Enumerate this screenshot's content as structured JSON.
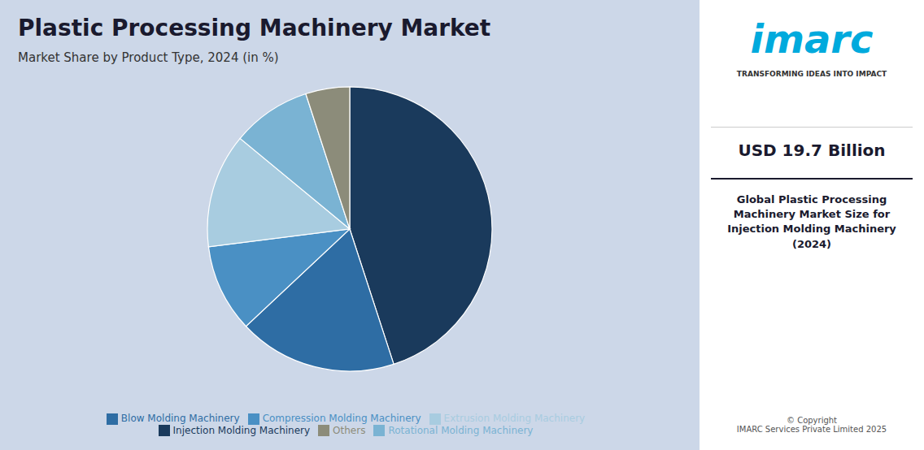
{
  "chart_data": {
    "type": "pie",
    "title": "Plastic Processing Machinery Market",
    "subtitle": "Market Share by Product Type, 2024 (in %)",
    "categories": [
      "Injection Molding Machinery",
      "Blow Molding Machinery",
      "Compression Molding Machinery",
      "Extrusion Molding Machinery",
      "Rotational Molding Machinery",
      "Others"
    ],
    "values": [
      45,
      18,
      10,
      13,
      9,
      5
    ],
    "colors": [
      "#1a3a5c",
      "#2e6da4",
      "#4a90c4",
      "#a8cce0",
      "#7ab3d3",
      "#8c8c7a"
    ],
    "legend": "bottom",
    "annotations": [
      "imarc",
      "TRANSFORMING IDEAS INTO IMPACT",
      "USD 19.7 Billion",
      "Global Plastic Processing Machinery Market Size for Injection Molding Machinery (2024)",
      "© Copyright\nIMARC Services Private Limited 2025"
    ]
  }
}
